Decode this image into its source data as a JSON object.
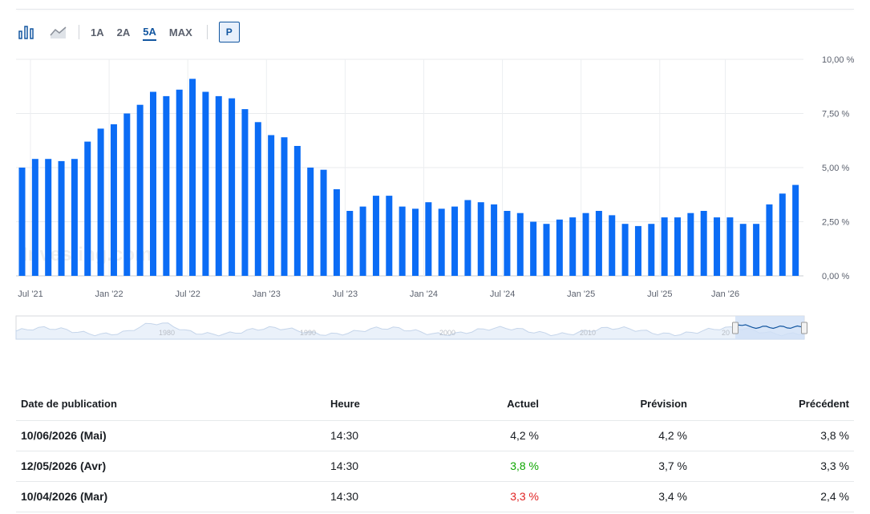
{
  "toolbar": {
    "icons": [
      "bar-chart-icon",
      "line-chart-icon"
    ],
    "ranges": [
      "1A",
      "2A",
      "5A",
      "MAX"
    ],
    "active_range": "5A",
    "p_label": "P"
  },
  "colors": {
    "bar": "#0b6cf5",
    "active": "#1256a0",
    "positive": "#0ea600",
    "negative": "#e02424"
  },
  "chart_data": {
    "type": "bar",
    "y_ticks": [
      "10,00 %",
      "7,50 %",
      "5,00 %",
      "2,50 %",
      "0,00 %"
    ],
    "ylim": [
      0,
      10
    ],
    "x_tick_labels": [
      "Jul '21",
      "Jan '22",
      "Jul '22",
      "Jan '23",
      "Jul '23",
      "Jan '24",
      "Jul '24",
      "Jan '25",
      "Jul '25",
      "Jan '26"
    ],
    "x_tick_indices": [
      0,
      6,
      12,
      18,
      24,
      30,
      36,
      42,
      48,
      53
    ],
    "values": [
      5.0,
      5.4,
      5.4,
      5.3,
      5.4,
      6.2,
      6.8,
      7.0,
      7.5,
      7.9,
      8.5,
      8.3,
      8.6,
      9.1,
      8.5,
      8.3,
      8.2,
      7.7,
      7.1,
      6.5,
      6.4,
      6.0,
      5.0,
      4.9,
      4.0,
      3.0,
      3.2,
      3.7,
      3.7,
      3.2,
      3.1,
      3.4,
      3.1,
      3.2,
      3.5,
      3.4,
      3.3,
      3.0,
      2.9,
      2.5,
      2.4,
      2.6,
      2.7,
      2.9,
      3.0,
      2.8,
      2.4,
      2.3,
      2.4,
      2.7,
      2.7,
      2.9,
      3.0,
      2.7,
      2.7,
      2.4,
      2.4,
      3.3,
      3.8,
      4.2
    ],
    "grid": true,
    "navigator_years": [
      "1980",
      "1990",
      "2000",
      "2010",
      "20"
    ],
    "watermark": "Investing.com"
  },
  "table": {
    "headers": [
      "Date de publication",
      "Heure",
      "Actuel",
      "Prévision",
      "Précédent"
    ],
    "rows": [
      {
        "date": "10/06/2026 (Mai)",
        "time": "14:30",
        "actual": "4,2 %",
        "actual_status": "neutral",
        "forecast": "4,2 %",
        "previous": "3,8 %"
      },
      {
        "date": "12/05/2026 (Avr)",
        "time": "14:30",
        "actual": "3,8 %",
        "actual_status": "positive",
        "forecast": "3,7 %",
        "previous": "3,3 %"
      },
      {
        "date": "10/04/2026 (Mar)",
        "time": "14:30",
        "actual": "3,3 %",
        "actual_status": "negative",
        "forecast": "3,4 %",
        "previous": "2,4 %"
      }
    ]
  }
}
